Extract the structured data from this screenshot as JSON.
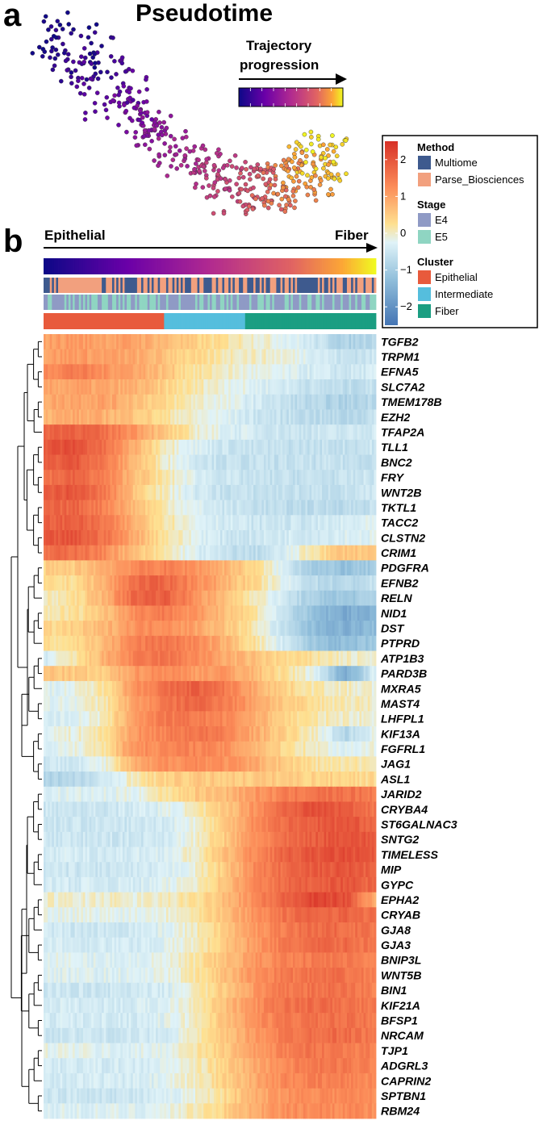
{
  "panel_a": {
    "letter": "a",
    "title": "Pseudotime",
    "arrow_label_line1": "Trajectory",
    "arrow_label_line2": "progression"
  },
  "panel_b": {
    "letter": "b",
    "left_label": "Epithelial",
    "right_label": "Fiber"
  },
  "legend": {
    "colorbar_ticks": [
      "2",
      "1",
      "0",
      "−1",
      "−2"
    ],
    "groups": [
      {
        "title": "Method",
        "items": [
          {
            "label": "Multiome",
            "color": "#3e5a8e"
          },
          {
            "label": "Parse_Biosciences",
            "color": "#f2a07e"
          }
        ]
      },
      {
        "title": "Stage",
        "items": [
          {
            "label": "E4",
            "color": "#8f9ac5"
          },
          {
            "label": "E5",
            "color": "#8fd5c2"
          }
        ]
      },
      {
        "title": "Cluster",
        "items": [
          {
            "label": "Epithelial",
            "color": "#e85a3c"
          },
          {
            "label": "Intermediate",
            "color": "#55bedd"
          },
          {
            "label": "Fiber",
            "color": "#1b9e82"
          }
        ]
      }
    ]
  },
  "colors": {
    "heat_high": "#d73027",
    "heat_mid": "#ffffbf",
    "heat_low": "#4575b4",
    "pseudotime_start": "#0d0887",
    "pseudotime_end": "#f0f921"
  },
  "chart_data": [
    {
      "type": "scatter",
      "title": "Pseudotime",
      "xlabel": "",
      "ylabel": "",
      "color_scale": "plasma",
      "description_points": "cells colored by pseudotime along a trajectory from upper-left (early) to lower-right (late)"
    },
    {
      "type": "heatmap",
      "title": "",
      "columns_direction": [
        "Epithelial",
        "Fiber"
      ],
      "color_range": [
        -2.5,
        2.5
      ],
      "annotation_rows": [
        "Pseudotime",
        "Method",
        "Stage",
        "Cluster"
      ],
      "cluster_proportions": {
        "Epithelial": 0.36,
        "Intermediate": 0.25,
        "Fiber": 0.39
      },
      "column_segments": 12,
      "genes": [
        "TGFB2",
        "TRPM1",
        "EFNA5",
        "SLC7A2",
        "TMEM178B",
        "EZH2",
        "TFAP2A",
        "TLL1",
        "BNC2",
        "FRY",
        "WNT2B",
        "TKTL1",
        "TACC2",
        "CLSTN2",
        "CRIM1",
        "PDGFRA",
        "EFNB2",
        "RELN",
        "NID1",
        "DST",
        "PTPRD",
        "ATP1B3",
        "PARD3B",
        "MXRA5",
        "MAST4",
        "LHFPL1",
        "KIF13A",
        "FGFRL1",
        "JAG1",
        "ASL1",
        "JARID2",
        "CRYBA4",
        "ST6GALNAC3",
        "SNTG2",
        "TIMELESS",
        "MIP",
        "GYPC",
        "EPHA2",
        "CRYAB",
        "GJA8",
        "GJA3",
        "BNIP3L",
        "WNT5B",
        "BIN1",
        "KIF21A",
        "BFSP1",
        "NRCAM",
        "TJP1",
        "ADGRL3",
        "CAPRIN2",
        "SPTBN1",
        "RBM24"
      ],
      "values": [
        [
          1.0,
          1.1,
          1.0,
          1.0,
          0.7,
          0.4,
          0.2,
          0.0,
          -0.2,
          -0.5,
          -0.9,
          -0.7
        ],
        [
          1.0,
          1.1,
          1.0,
          0.9,
          0.6,
          0.3,
          0.1,
          0.0,
          -0.1,
          -0.3,
          -0.6,
          -0.5
        ],
        [
          1.3,
          1.5,
          1.2,
          1.0,
          0.6,
          0.2,
          0.0,
          -0.2,
          -0.3,
          -0.4,
          -0.5,
          -0.4
        ],
        [
          0.9,
          1.0,
          0.9,
          0.8,
          0.4,
          0.1,
          -0.1,
          -0.3,
          -0.4,
          -0.6,
          -0.7,
          -0.6
        ],
        [
          0.9,
          1.0,
          1.0,
          0.7,
          0.3,
          0.0,
          -0.2,
          -0.4,
          -0.6,
          -0.8,
          -0.9,
          -0.7
        ],
        [
          0.8,
          0.9,
          0.8,
          0.6,
          0.2,
          -0.1,
          -0.3,
          -0.5,
          -0.6,
          -0.7,
          -0.8,
          -0.6
        ],
        [
          1.8,
          1.9,
          1.6,
          1.2,
          0.5,
          0.0,
          -0.3,
          -0.4,
          -0.5,
          -0.5,
          -0.5,
          -0.4
        ],
        [
          2.0,
          2.1,
          1.6,
          0.8,
          0.1,
          -0.3,
          -0.5,
          -0.6,
          -0.6,
          -0.6,
          -0.6,
          -0.5
        ],
        [
          1.8,
          2.0,
          1.5,
          0.7,
          0.0,
          -0.4,
          -0.6,
          -0.6,
          -0.6,
          -0.6,
          -0.6,
          -0.6
        ],
        [
          1.6,
          1.8,
          1.4,
          0.7,
          0.1,
          -0.3,
          -0.5,
          -0.6,
          -0.6,
          -0.6,
          -0.6,
          -0.5
        ],
        [
          1.9,
          2.0,
          1.5,
          0.6,
          0.0,
          -0.4,
          -0.6,
          -0.6,
          -0.6,
          -0.6,
          -0.6,
          -0.5
        ],
        [
          1.7,
          1.8,
          1.4,
          0.7,
          0.1,
          -0.3,
          -0.5,
          -0.6,
          -0.7,
          -0.7,
          -0.7,
          -0.6
        ],
        [
          1.8,
          1.9,
          1.5,
          0.8,
          0.2,
          -0.2,
          -0.4,
          -0.5,
          -0.5,
          -0.5,
          -0.4,
          -0.3
        ],
        [
          1.9,
          2.0,
          1.6,
          0.9,
          0.2,
          -0.2,
          -0.5,
          -0.5,
          -0.4,
          -0.4,
          -0.3,
          -0.3
        ],
        [
          1.6,
          1.7,
          1.3,
          0.6,
          0.1,
          -0.3,
          -0.6,
          -0.7,
          -0.4,
          0.2,
          0.6,
          0.5
        ],
        [
          0.4,
          0.5,
          0.9,
          1.3,
          1.4,
          1.2,
          0.8,
          0.3,
          -0.4,
          -1.0,
          -1.2,
          -1.0
        ],
        [
          0.2,
          0.3,
          0.8,
          1.7,
          1.8,
          1.3,
          0.8,
          0.3,
          -0.3,
          -0.7,
          -0.8,
          -0.6
        ],
        [
          0.0,
          0.2,
          0.8,
          1.8,
          1.9,
          1.2,
          0.6,
          0.1,
          -0.5,
          -1.0,
          -1.1,
          -0.9
        ],
        [
          0.1,
          0.2,
          0.6,
          1.3,
          1.5,
          1.1,
          0.7,
          0.2,
          -0.6,
          -1.3,
          -1.6,
          -1.4
        ],
        [
          0.3,
          0.4,
          0.7,
          1.2,
          1.3,
          1.0,
          0.6,
          0.1,
          -0.7,
          -1.3,
          -1.5,
          -1.3
        ],
        [
          0.2,
          0.3,
          0.7,
          1.4,
          1.6,
          1.3,
          0.8,
          0.2,
          -0.5,
          -1.1,
          -1.3,
          -1.1
        ],
        [
          -0.4,
          0.1,
          0.8,
          1.4,
          1.6,
          1.3,
          0.9,
          0.6,
          0.3,
          0.2,
          0.0,
          -0.1
        ],
        [
          0.6,
          0.5,
          0.4,
          1.1,
          1.3,
          1.1,
          1.1,
          0.7,
          0.2,
          -0.2,
          -1.6,
          -0.3
        ],
        [
          -0.3,
          -0.2,
          0.2,
          1.2,
          1.6,
          1.9,
          1.5,
          0.9,
          0.4,
          0.1,
          0.0,
          -0.1
        ],
        [
          -0.3,
          -0.2,
          0.1,
          1.0,
          1.5,
          1.8,
          1.5,
          1.0,
          0.5,
          0.2,
          0.1,
          0.0
        ],
        [
          -0.4,
          -0.3,
          0.0,
          1.1,
          1.5,
          1.5,
          1.3,
          0.9,
          0.4,
          0.1,
          0.0,
          -0.1
        ],
        [
          -0.2,
          -0.1,
          0.2,
          1.1,
          1.4,
          1.6,
          1.4,
          0.9,
          0.4,
          0.0,
          -0.8,
          -0.2
        ],
        [
          -0.3,
          -0.2,
          0.2,
          1.2,
          1.3,
          1.4,
          1.2,
          0.8,
          0.3,
          0.0,
          -0.3,
          -0.1
        ],
        [
          -0.5,
          -0.4,
          -0.2,
          0.8,
          1.2,
          1.3,
          1.2,
          0.9,
          0.5,
          0.2,
          0.1,
          0.1
        ],
        [
          -0.8,
          -0.8,
          -0.5,
          0.1,
          0.4,
          0.5,
          0.5,
          0.5,
          0.5,
          0.4,
          0.4,
          0.3
        ],
        [
          -0.3,
          -0.3,
          -0.3,
          -0.2,
          0.2,
          0.5,
          0.7,
          1.1,
          1.4,
          1.6,
          1.6,
          1.5
        ],
        [
          -0.5,
          -0.5,
          -0.5,
          -0.4,
          -0.3,
          0.0,
          0.5,
          1.2,
          1.8,
          2.1,
          1.9,
          1.6
        ],
        [
          -0.5,
          -0.5,
          -0.5,
          -0.5,
          -0.4,
          -0.1,
          0.5,
          1.3,
          1.7,
          1.9,
          2.0,
          1.8
        ],
        [
          -0.5,
          -0.5,
          -0.5,
          -0.5,
          -0.4,
          -0.1,
          0.5,
          1.2,
          1.6,
          1.9,
          2.1,
          1.9
        ],
        [
          -0.4,
          -0.4,
          -0.4,
          -0.4,
          -0.3,
          0.0,
          0.6,
          1.3,
          1.8,
          2.0,
          2.1,
          1.9
        ],
        [
          -0.5,
          -0.5,
          -0.5,
          -0.5,
          -0.4,
          -0.1,
          0.5,
          1.3,
          1.7,
          1.9,
          2.0,
          1.8
        ],
        [
          -0.4,
          -0.4,
          -0.4,
          -0.4,
          -0.3,
          0.0,
          0.6,
          1.3,
          1.7,
          1.9,
          2.0,
          1.7
        ],
        [
          0.0,
          -0.1,
          0.0,
          -0.1,
          0.0,
          0.2,
          0.7,
          1.3,
          1.8,
          2.2,
          2.1,
          0.9
        ],
        [
          -0.2,
          -0.2,
          -0.2,
          -0.2,
          -0.1,
          0.2,
          0.6,
          1.2,
          1.6,
          1.8,
          1.8,
          1.6
        ],
        [
          -0.4,
          -0.5,
          -0.5,
          -0.4,
          -0.3,
          0.0,
          0.5,
          1.1,
          1.5,
          1.7,
          1.7,
          1.5
        ],
        [
          -0.3,
          -0.4,
          -0.4,
          -0.4,
          -0.3,
          0.0,
          0.5,
          1.1,
          1.5,
          1.7,
          1.7,
          1.5
        ],
        [
          -0.2,
          -0.3,
          -0.3,
          -0.3,
          -0.2,
          0.1,
          0.6,
          1.1,
          1.4,
          1.5,
          1.5,
          1.4
        ],
        [
          -0.3,
          -0.3,
          -0.3,
          -0.3,
          -0.2,
          0.1,
          0.6,
          1.2,
          1.5,
          1.6,
          1.6,
          1.4
        ],
        [
          -0.5,
          -0.5,
          -0.5,
          -0.5,
          -0.4,
          0.0,
          0.5,
          1.1,
          1.5,
          1.6,
          1.6,
          1.4
        ],
        [
          -0.4,
          -0.4,
          -0.4,
          -0.4,
          -0.3,
          0.1,
          0.6,
          1.2,
          1.6,
          1.7,
          1.6,
          1.5
        ],
        [
          -0.4,
          -0.4,
          -0.4,
          -0.4,
          -0.3,
          0.0,
          0.6,
          1.2,
          1.5,
          1.6,
          1.6,
          1.5
        ],
        [
          -0.5,
          -0.5,
          -0.5,
          -0.5,
          -0.4,
          0.0,
          0.5,
          1.1,
          1.5,
          1.7,
          1.7,
          1.5
        ],
        [
          -0.2,
          -0.2,
          -0.3,
          -0.3,
          -0.2,
          0.1,
          0.5,
          1.0,
          1.4,
          1.6,
          1.5,
          1.4
        ],
        [
          -0.4,
          -0.4,
          -0.4,
          -0.4,
          -0.3,
          0.0,
          0.4,
          0.9,
          1.3,
          1.5,
          1.5,
          1.4
        ],
        [
          -0.4,
          -0.4,
          -0.4,
          -0.4,
          -0.3,
          0.0,
          0.4,
          0.9,
          1.3,
          1.4,
          1.4,
          1.3
        ],
        [
          -0.5,
          -0.5,
          -0.5,
          -0.5,
          -0.4,
          -0.1,
          0.3,
          0.8,
          1.2,
          1.3,
          1.3,
          1.2
        ],
        [
          -0.3,
          -0.3,
          -0.3,
          -0.3,
          -0.2,
          0.1,
          0.4,
          0.9,
          1.2,
          1.3,
          1.3,
          1.2
        ]
      ]
    }
  ]
}
